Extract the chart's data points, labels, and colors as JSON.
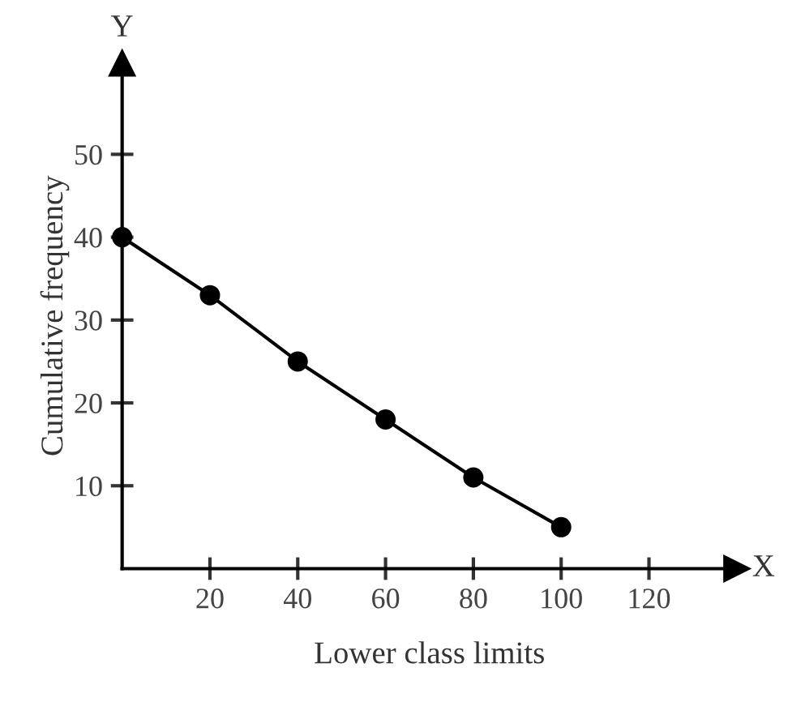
{
  "chart_data": {
    "type": "line",
    "xlabel": "Lower class limits",
    "ylabel": "Cumulative frequency",
    "annotations": [
      "X",
      "Y"
    ],
    "x": [
      0,
      20,
      40,
      60,
      80,
      100
    ],
    "series": [
      {
        "color": "#000000",
        "values": [
          40,
          33,
          25,
          18,
          11,
          5
        ]
      }
    ],
    "xlim": [
      0,
      140
    ],
    "ylim": [
      0,
      61
    ],
    "xticks": [
      20,
      40,
      60,
      80,
      100,
      120
    ],
    "yticks": [
      10,
      20,
      30,
      40,
      50
    ],
    "marker": "circle",
    "line_style": "solid",
    "grid": false,
    "legend": false
  }
}
